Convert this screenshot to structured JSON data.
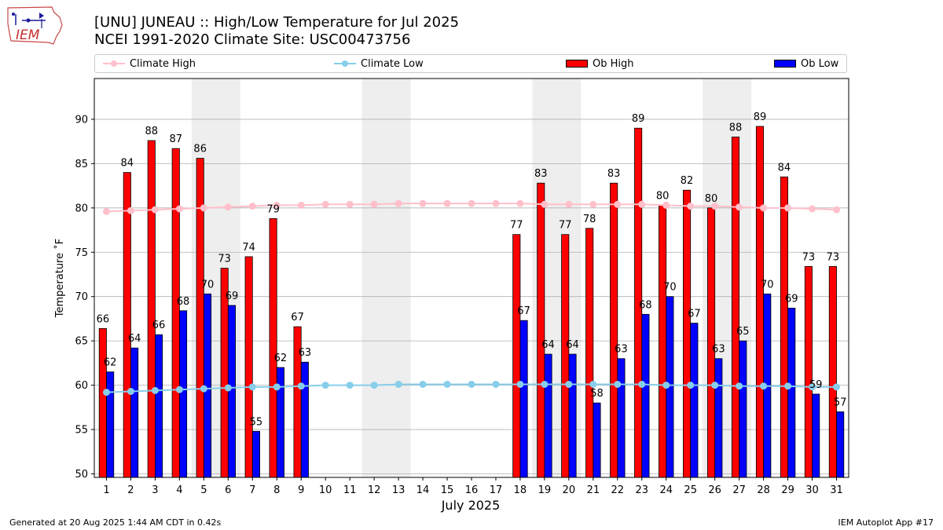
{
  "logo": {
    "text": "IEM"
  },
  "title_line1": "[UNU] JUNEAU :: High/Low Temperature for Jul 2025",
  "title_line2": "NCEI 1991-2020 Climate Site: USC00473756",
  "legend": {
    "climate_high": "Climate High",
    "climate_low": "Climate Low",
    "ob_high": "Ob High",
    "ob_low": "Ob Low"
  },
  "colors": {
    "ob_high": "#ff0000",
    "ob_low": "#0000ff",
    "climate_high": "#ffc0cb",
    "climate_low": "#87ceeb",
    "weekend_band": "#eeeeee",
    "grid": "#b0b0b0"
  },
  "footer_left": "Generated at 20 Aug 2025 1:44 AM CDT in 0.42s",
  "footer_right": "IEM Autoplot App #17",
  "chart_data": {
    "type": "bar",
    "xlabel": "July 2025",
    "ylabel": "Temperature ˚F",
    "ylim": [
      49.6,
      94.6
    ],
    "yticks": [
      50,
      55,
      60,
      65,
      70,
      75,
      80,
      85,
      90
    ],
    "grid": true,
    "legend_position": "top",
    "categories": [
      1,
      2,
      3,
      4,
      5,
      6,
      7,
      8,
      9,
      10,
      11,
      12,
      13,
      14,
      15,
      16,
      17,
      18,
      19,
      20,
      21,
      22,
      23,
      24,
      25,
      26,
      27,
      28,
      29,
      30,
      31
    ],
    "shaded_days": [
      5,
      6,
      12,
      13,
      19,
      20,
      26,
      27
    ],
    "ob_high": {
      "values": [
        66.4,
        84.0,
        87.6,
        86.7,
        85.6,
        73.2,
        74.5,
        78.8,
        66.6,
        null,
        null,
        null,
        null,
        null,
        null,
        null,
        null,
        77.0,
        82.8,
        77.0,
        77.7,
        82.8,
        89.0,
        80.3,
        82.0,
        80.0,
        88.0,
        89.2,
        83.5,
        73.4,
        73.4
      ],
      "labels": [
        "66",
        "84",
        "88",
        "87",
        "86",
        "73",
        "74",
        "79",
        "67",
        "",
        "",
        "",
        "",
        "",
        "",
        "",
        "",
        "77",
        "83",
        "77",
        "78",
        "83",
        "89",
        "80",
        "82",
        "80",
        "88",
        "89",
        "84",
        "73",
        "73"
      ]
    },
    "ob_low": {
      "values": [
        61.5,
        64.2,
        65.7,
        68.4,
        70.3,
        69.0,
        54.8,
        62.0,
        62.6,
        null,
        null,
        null,
        null,
        null,
        null,
        null,
        null,
        67.3,
        63.5,
        63.5,
        58.0,
        63.0,
        68.0,
        70.0,
        67.0,
        63.0,
        65.0,
        70.3,
        68.7,
        59.0,
        57.0
      ],
      "labels": [
        "62",
        "64",
        "66",
        "68",
        "70",
        "69",
        "55",
        "62",
        "63",
        "",
        "",
        "",
        "",
        "",
        "",
        "",
        "",
        "67",
        "64",
        "64",
        "58",
        "63",
        "68",
        "70",
        "67",
        "63",
        "65",
        "70",
        "69",
        "59",
        "57"
      ]
    },
    "climate_high": [
      79.6,
      79.7,
      79.8,
      79.9,
      80.0,
      80.1,
      80.2,
      80.3,
      80.3,
      80.4,
      80.4,
      80.4,
      80.5,
      80.5,
      80.5,
      80.5,
      80.5,
      80.5,
      80.4,
      80.4,
      80.4,
      80.4,
      80.4,
      80.3,
      80.2,
      80.2,
      80.1,
      80.0,
      80.0,
      79.9,
      79.8
    ],
    "climate_low": [
      59.2,
      59.3,
      59.4,
      59.5,
      59.6,
      59.7,
      59.8,
      59.8,
      59.9,
      60.0,
      60.0,
      60.0,
      60.1,
      60.1,
      60.1,
      60.1,
      60.1,
      60.1,
      60.1,
      60.1,
      60.1,
      60.1,
      60.1,
      60.0,
      60.0,
      60.0,
      59.9,
      59.9,
      59.9,
      59.8,
      59.8
    ]
  }
}
